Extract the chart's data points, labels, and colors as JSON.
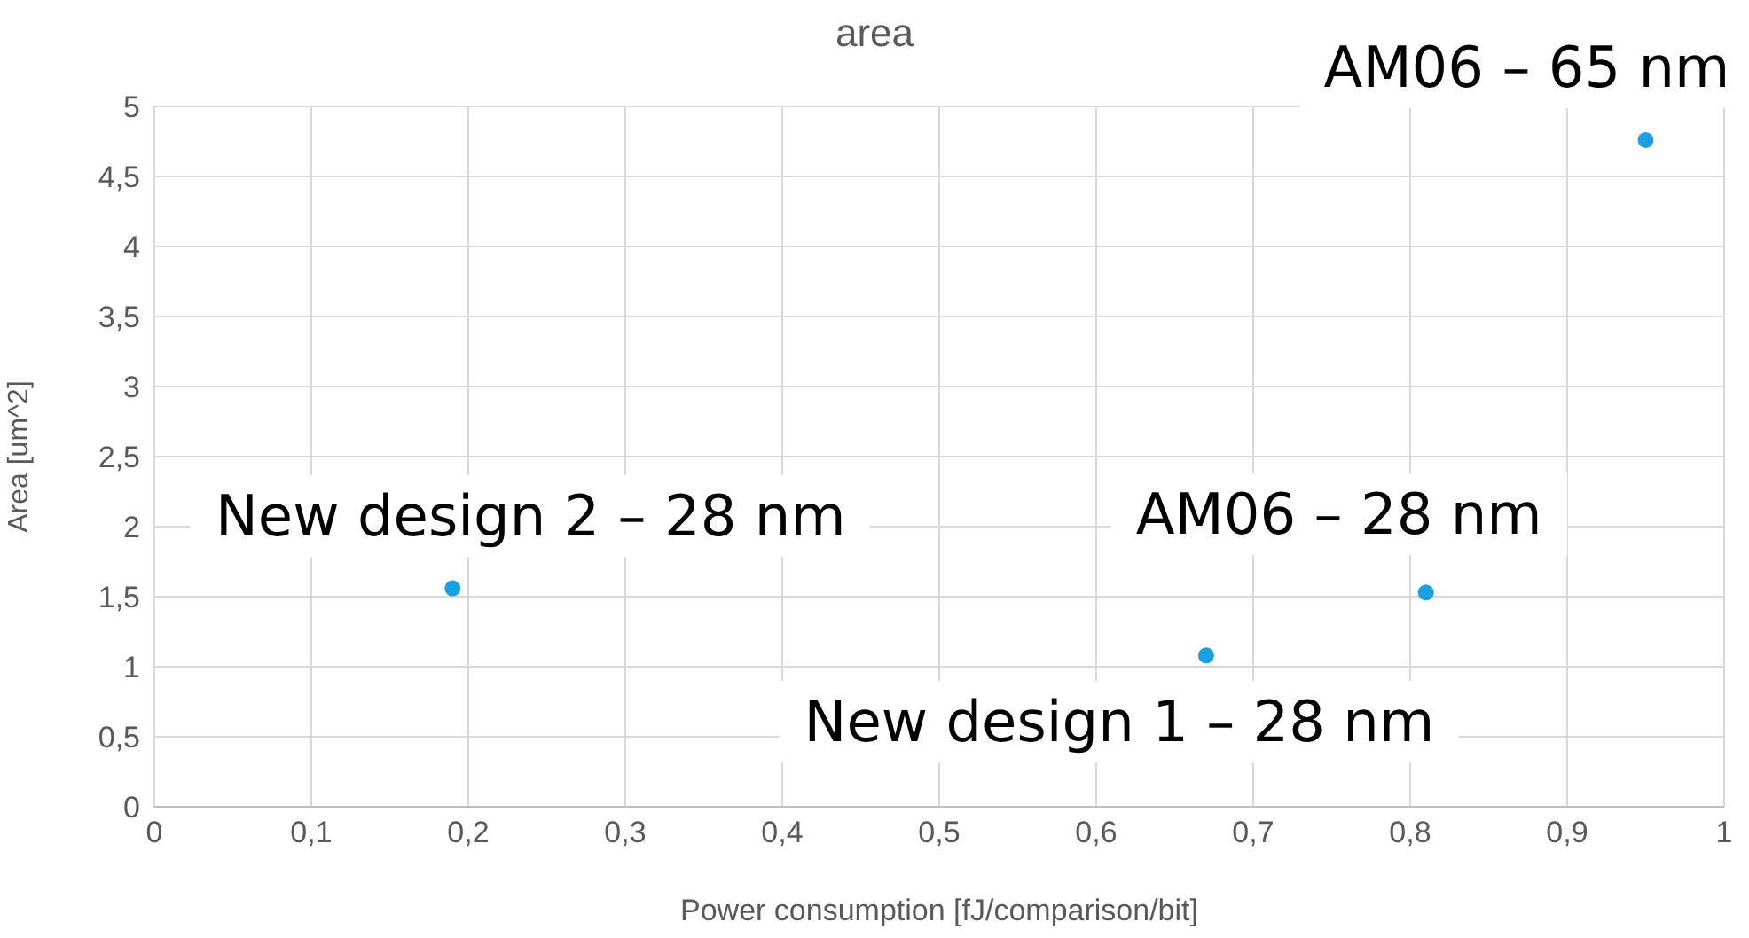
{
  "chart_data": {
    "type": "scatter",
    "title": "area",
    "xlabel": "Power consumption [fJ/comparison/bit]",
    "ylabel": "Area [um^2]",
    "x": [
      0.95,
      0.19,
      0.67,
      0.81
    ],
    "values": [
      4.76,
      1.56,
      1.08,
      1.53
    ],
    "color": "#1ba1e2",
    "marker": "circle",
    "grid": true,
    "legend": false,
    "xlim": [
      0,
      1
    ],
    "xticks": [
      0,
      {
        "value": 0.1,
        "label": "0,1"
      },
      {
        "value": 0.2,
        "label": "0,2"
      },
      {
        "value": 0.3,
        "label": "0,3"
      },
      {
        "value": 0.4,
        "label": "0,4"
      },
      {
        "value": 0.5,
        "label": "0,5"
      },
      {
        "value": 0.6,
        "label": "0,6"
      },
      {
        "value": 0.7,
        "label": "0,7"
      },
      {
        "value": 0.8,
        "label": "0,8"
      },
      {
        "value": 0.9,
        "label": "0,9"
      },
      1
    ],
    "ylim": [
      0,
      5
    ],
    "yticks": [
      0,
      {
        "value": 0.5,
        "label": "0,5"
      },
      1,
      {
        "value": 1.5,
        "label": "1,5"
      },
      2,
      {
        "value": 2.5,
        "label": "2,5"
      },
      3,
      {
        "value": 3.5,
        "label": "3,5"
      },
      4,
      {
        "value": 4.5,
        "label": "4,5"
      },
      5
    ],
    "annotations": [
      {
        "text": "AM06 – 65 nm",
        "x": 0.95,
        "y": 4.76
      },
      {
        "text": "New design 2 – 28 nm",
        "x": 0.19,
        "y": 1.56
      },
      {
        "text": "New design 1 – 28 nm",
        "x": 0.67,
        "y": 1.08
      },
      {
        "text": "AM06 – 28 nm",
        "x": 0.81,
        "y": 1.53
      }
    ]
  }
}
